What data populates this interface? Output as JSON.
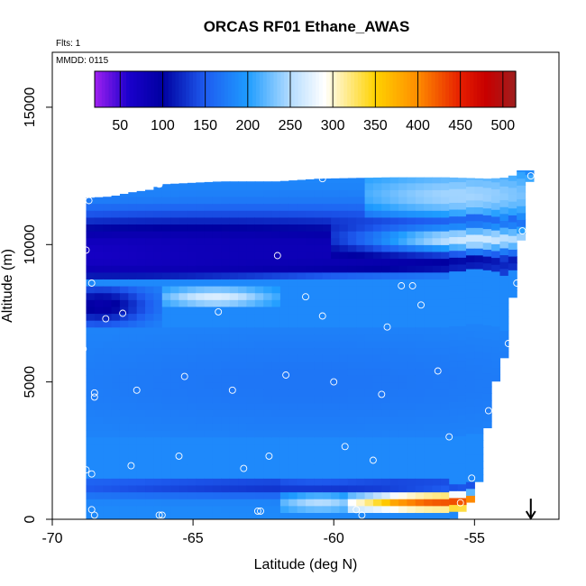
{
  "chart_data": {
    "type": "heatmap",
    "title": "ORCAS RF01 Ethane_AWAS",
    "flights_label": "Flts: 1",
    "date_label": "MMDD: 0115",
    "xlabel": "Latitude (deg N)",
    "ylabel": "Altitude (m)",
    "xlim": [
      -70,
      -52
    ],
    "ylim": [
      0,
      17000
    ],
    "xticks": [
      -70,
      -65,
      -60,
      -55
    ],
    "yticks": [
      0,
      5000,
      10000,
      15000
    ],
    "colorbar": {
      "range": [
        20,
        515
      ],
      "ticks": [
        50,
        100,
        150,
        200,
        250,
        300,
        350,
        400,
        450,
        500
      ],
      "stops": [
        {
          "v": 20,
          "color": "#a020f0"
        },
        {
          "v": 60,
          "color": "#1a00cc"
        },
        {
          "v": 100,
          "color": "#0000a0"
        },
        {
          "v": 150,
          "color": "#1e5cf0"
        },
        {
          "v": 200,
          "color": "#1e9cff"
        },
        {
          "v": 250,
          "color": "#b4dcff"
        },
        {
          "v": 290,
          "color": "#ffffff"
        },
        {
          "v": 350,
          "color": "#ffd200"
        },
        {
          "v": 400,
          "color": "#ff8c00"
        },
        {
          "v": 450,
          "color": "#e61e00"
        },
        {
          "v": 480,
          "color": "#c80000"
        },
        {
          "v": 515,
          "color": "#a01e1e"
        }
      ]
    },
    "background_value": 185,
    "field_extent": {
      "lat_start": -68.8,
      "lat_end": -53.1,
      "col_width": 0.3,
      "top_altitudes": [
        [
          -68.8,
          11700
        ],
        [
          -67.9,
          11750
        ],
        [
          -67.2,
          11900
        ],
        [
          -66.5,
          12000
        ],
        [
          -66.0,
          12200
        ],
        [
          -64.0,
          12300
        ],
        [
          -62.0,
          12300
        ],
        [
          -60.5,
          12400
        ],
        [
          -58.0,
          12450
        ],
        [
          -56.0,
          12450
        ],
        [
          -54.5,
          12400
        ],
        [
          -53.7,
          12450
        ],
        [
          -53.5,
          12700
        ],
        [
          -53.1,
          12700
        ]
      ],
      "bottom_altitudes": [
        [
          -68.8,
          0
        ],
        [
          -55.8,
          0
        ],
        [
          -55.2,
          500
        ],
        [
          -54.8,
          1500
        ],
        [
          -54.5,
          3700
        ],
        [
          -54.2,
          5300
        ],
        [
          -53.9,
          6000
        ],
        [
          -53.6,
          8500
        ],
        [
          -53.3,
          10500
        ],
        [
          -53.1,
          12300
        ]
      ]
    },
    "features": [
      {
        "lat_min": -69,
        "lat_max": -56,
        "alt_min": 8700,
        "alt_max": 11500,
        "lat_center": -68,
        "alt_center": 9700,
        "sigma_lat": 6.5,
        "sigma_alt": 700,
        "value": 40
      },
      {
        "lat_min": -69,
        "lat_max": -53,
        "alt_min": 9000,
        "alt_max": 12500,
        "lat_center": -61,
        "alt_center": 9800,
        "sigma_lat": 9,
        "sigma_alt": 900,
        "value": 80
      },
      {
        "lat_min": -60,
        "lat_max": -53,
        "alt_min": 9500,
        "alt_max": 11000,
        "lat_center": -55,
        "alt_center": 10200,
        "sigma_lat": 3,
        "sigma_alt": 350,
        "value": 265
      },
      {
        "lat_min": -59,
        "lat_max": -53,
        "alt_min": 11000,
        "alt_max": 12600,
        "lat_center": -55.5,
        "alt_center": 11800,
        "sigma_lat": 3,
        "sigma_alt": 600,
        "value": 245
      },
      {
        "lat_min": -66,
        "lat_max": -62,
        "alt_min": 7700,
        "alt_max": 8500,
        "lat_center": -64.2,
        "alt_center": 8100,
        "sigma_lat": 1.4,
        "sigma_alt": 250,
        "value": 270
      },
      {
        "lat_min": -69,
        "lat_max": -66,
        "alt_min": 7000,
        "alt_max": 8500,
        "lat_center": -68.3,
        "alt_center": 7800,
        "sigma_lat": 1.2,
        "sigma_alt": 500,
        "value": 90
      },
      {
        "lat_min": -59.5,
        "lat_max": -55,
        "alt_min": 300,
        "alt_max": 1300,
        "lat_center": -56,
        "alt_center": 750,
        "sigma_lat": 3,
        "sigma_alt": 300,
        "value": 470
      },
      {
        "lat_min": -62,
        "lat_max": -58,
        "alt_min": 300,
        "alt_max": 1500,
        "lat_center": -60.5,
        "alt_center": 900,
        "sigma_lat": 1.2,
        "sigma_alt": 400,
        "value": 280
      },
      {
        "lat_min": -69,
        "lat_max": -53,
        "alt_min": 0,
        "alt_max": 1400,
        "lat_center": -60,
        "alt_center": 1200,
        "sigma_lat": 9,
        "sigma_alt": 250,
        "value": 125
      },
      {
        "lat_min": -69,
        "lat_max": -53,
        "alt_min": 3000,
        "alt_max": 7000,
        "lat_center": -61,
        "alt_center": 5000,
        "sigma_lat": 8,
        "sigma_alt": 1500,
        "value": 170
      }
    ],
    "sample_points": [
      [
        -68.7,
        11600
      ],
      [
        -66.2,
        12200
      ],
      [
        -60.4,
        12400
      ],
      [
        -53.0,
        12500
      ],
      [
        -68.8,
        9800
      ],
      [
        -62.0,
        9600
      ],
      [
        -53.3,
        10500
      ],
      [
        -68.6,
        8600
      ],
      [
        -61.0,
        8100
      ],
      [
        -57.6,
        8500
      ],
      [
        -57.2,
        8500
      ],
      [
        -53.5,
        8600
      ],
      [
        -68.1,
        7300
      ],
      [
        -67.5,
        7500
      ],
      [
        -64.1,
        7550
      ],
      [
        -60.4,
        7400
      ],
      [
        -56.9,
        7800
      ],
      [
        -58.1,
        7000
      ],
      [
        -68.9,
        6200
      ],
      [
        -53.8,
        6400
      ],
      [
        -65.3,
        5200
      ],
      [
        -61.7,
        5250
      ],
      [
        -60.0,
        5000
      ],
      [
        -56.3,
        5400
      ],
      [
        -67.0,
        4700
      ],
      [
        -68.5,
        4600
      ],
      [
        -68.5,
        4450
      ],
      [
        -63.6,
        4700
      ],
      [
        -58.3,
        4550
      ],
      [
        -54.5,
        3950
      ],
      [
        -55.9,
        3000
      ],
      [
        -59.6,
        2650
      ],
      [
        -62.3,
        2300
      ],
      [
        -65.5,
        2300
      ],
      [
        -58.6,
        2150
      ],
      [
        -67.2,
        1950
      ],
      [
        -68.8,
        1800
      ],
      [
        -68.6,
        1650
      ],
      [
        -63.2,
        1850
      ],
      [
        -55.1,
        1500
      ],
      [
        -55.5,
        600
      ],
      [
        -68.6,
        350
      ],
      [
        -59.2,
        350
      ],
      [
        -68.5,
        150
      ],
      [
        -66.2,
        150
      ],
      [
        -66.1,
        150
      ],
      [
        -62.6,
        300
      ],
      [
        -62.7,
        300
      ],
      [
        -59.0,
        150
      ]
    ],
    "arrow_marker": {
      "lat": -53.0,
      "alt_from": 750,
      "alt_to": 0,
      "direction": "down"
    }
  }
}
